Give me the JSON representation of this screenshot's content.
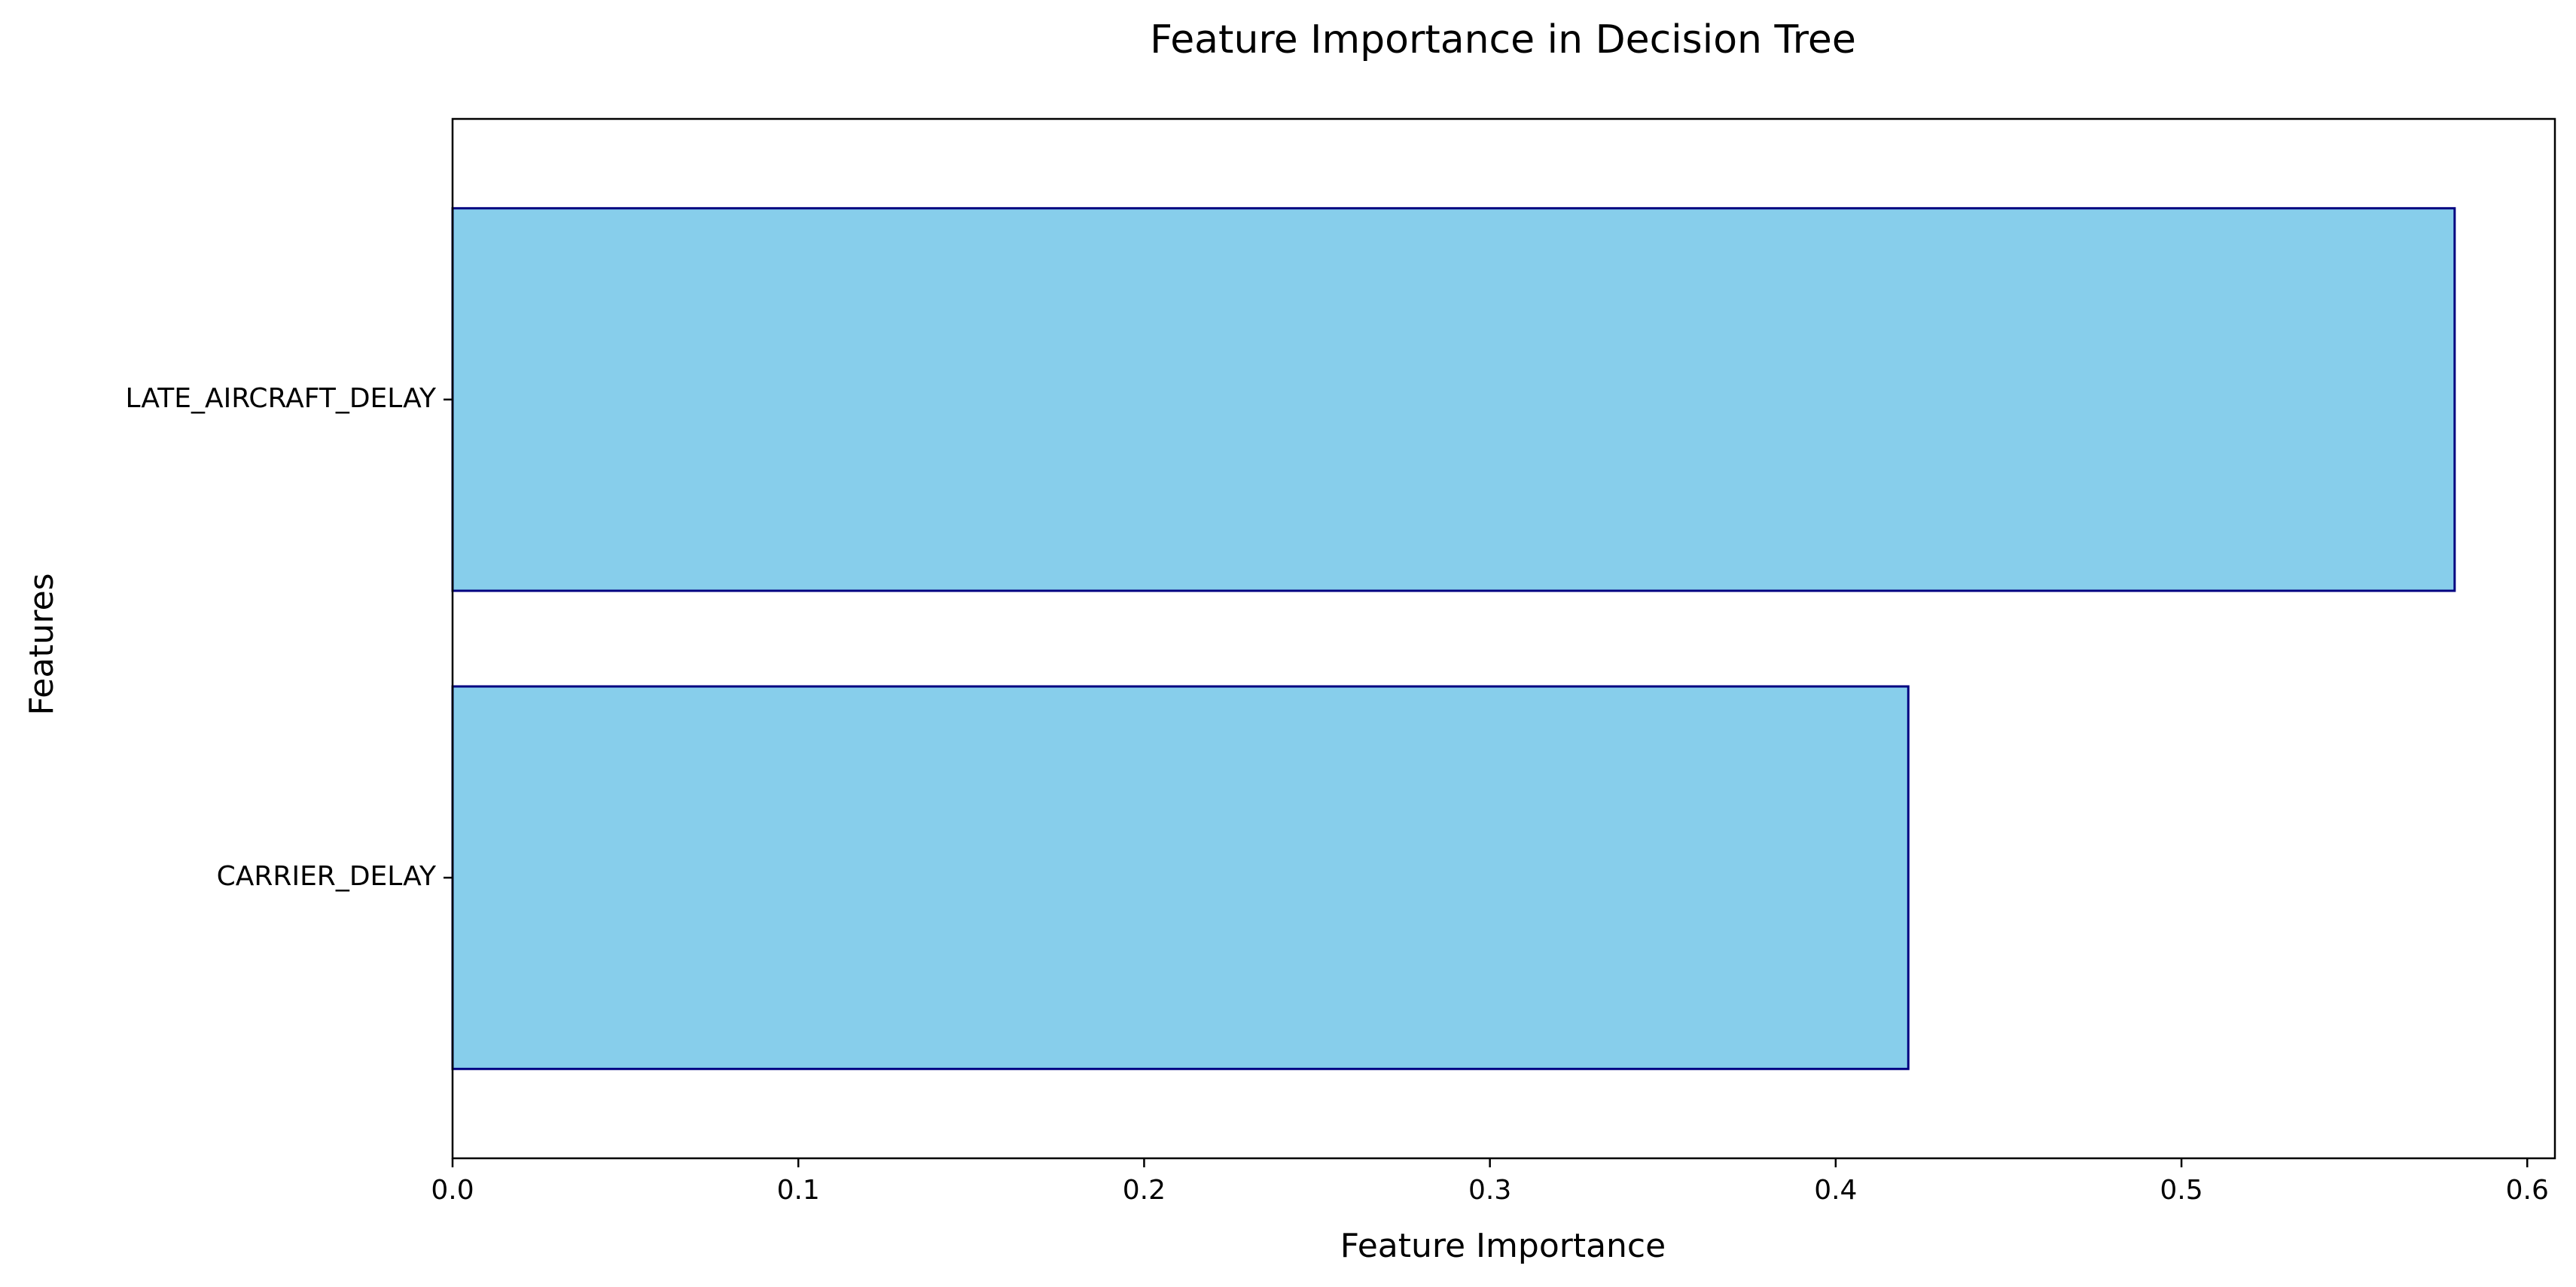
{
  "chart_data": {
    "type": "bar",
    "orientation": "horizontal",
    "title": "Feature Importance in Decision Tree",
    "xlabel": "Feature Importance",
    "ylabel": "Features",
    "categories": [
      "CARRIER_DELAY",
      "LATE_AIRCRAFT_DELAY"
    ],
    "values": [
      0.421,
      0.579
    ],
    "xlim": [
      0,
      0.608
    ],
    "xticks": [
      0.0,
      0.1,
      0.2,
      0.3,
      0.4,
      0.5,
      0.6
    ],
    "xtick_labels": [
      "0.0",
      "0.1",
      "0.2",
      "0.3",
      "0.4",
      "0.5",
      "0.6"
    ],
    "grid": false,
    "legend": "none",
    "colors": {
      "bar_fill": "#87CEEB",
      "bar_edge": "#000080",
      "axis": "#000000",
      "text": "#000000",
      "background": "#ffffff"
    }
  }
}
